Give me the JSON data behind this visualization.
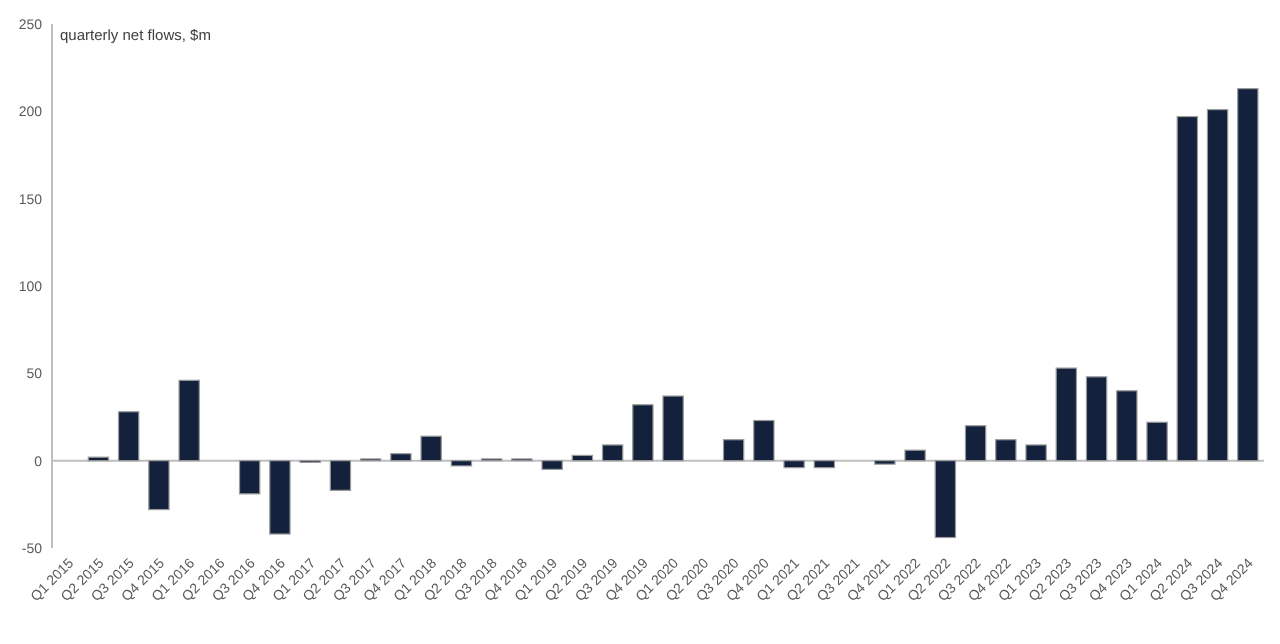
{
  "chart_data": {
    "type": "bar",
    "title": "quarterly net flows, $m",
    "categories": [
      "Q1 2015",
      "Q2 2015",
      "Q3 2015",
      "Q4 2015",
      "Q1 2016",
      "Q2 2016",
      "Q3 2016",
      "Q4 2016",
      "Q1 2017",
      "Q2 2017",
      "Q3 2017",
      "Q4 2017",
      "Q1 2018",
      "Q2 2018",
      "Q3 2018",
      "Q4 2018",
      "Q1 2019",
      "Q2 2019",
      "Q3 2019",
      "Q4 2019",
      "Q1 2020",
      "Q2 2020",
      "Q3 2020",
      "Q4 2020",
      "Q1 2021",
      "Q2 2021",
      "Q3 2021",
      "Q4 2021",
      "Q1 2022",
      "Q2 2022",
      "Q3 2022",
      "Q4 2022",
      "Q1 2023",
      "Q2 2023",
      "Q3 2023",
      "Q4 2023",
      "Q1 2024",
      "Q2 2024",
      "Q3 2024",
      "Q4 2024"
    ],
    "values": [
      0,
      2,
      28,
      -28,
      46,
      0,
      -19,
      -42,
      -1,
      -17,
      1,
      4,
      14,
      -3,
      1,
      1,
      -5,
      3,
      9,
      32,
      37,
      0,
      12,
      23,
      -4,
      -4,
      0,
      -2,
      6,
      -44,
      20,
      12,
      9,
      53,
      48,
      40,
      22,
      197,
      201,
      213
    ],
    "color": "#14213d",
    "ylim": [
      -50,
      250
    ],
    "yticks": [
      -50,
      0,
      50,
      100,
      150,
      200,
      250
    ]
  }
}
